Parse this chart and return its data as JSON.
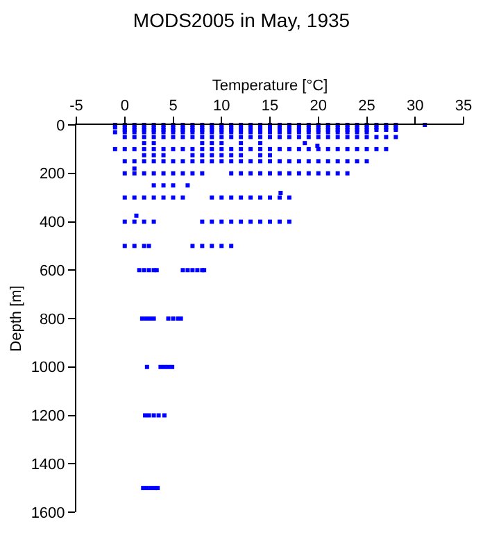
{
  "chart_data": {
    "type": "scatter",
    "title": "MODS2005 in May, 1935",
    "xlabel": "Temperature [°C]",
    "ylabel": "Depth [m]",
    "xlim": [
      -5,
      35
    ],
    "xticks": [
      -5,
      0,
      5,
      10,
      15,
      20,
      25,
      30,
      35
    ],
    "ylim": [
      1600,
      0
    ],
    "yticks": [
      0,
      200,
      400,
      600,
      800,
      1000,
      1200,
      1400,
      1600
    ],
    "marker": "square",
    "series": [
      {
        "color": "#0000ff",
        "x": [
          -1,
          0,
          1,
          2,
          3,
          4,
          5,
          6,
          7,
          8,
          9,
          10,
          11,
          12,
          13,
          14,
          15,
          16,
          17,
          18,
          19,
          20,
          21,
          22,
          23,
          24,
          25,
          26,
          27,
          28,
          31,
          -1,
          0,
          1,
          2,
          3,
          4,
          5,
          6,
          7,
          8,
          9,
          10,
          11,
          12,
          13,
          14,
          15,
          16,
          17,
          18,
          19,
          20,
          21,
          22,
          23,
          24,
          25,
          26,
          27,
          28,
          0,
          1,
          2,
          3,
          4,
          5,
          6,
          7,
          8,
          9,
          10,
          11,
          12,
          13,
          14,
          15,
          16,
          17,
          18,
          19,
          20,
          21,
          22,
          23,
          24,
          25,
          26,
          27,
          28,
          -1,
          0,
          1,
          2,
          3,
          4,
          5,
          6,
          7,
          8,
          9,
          10,
          11,
          12,
          13,
          14,
          15,
          16,
          17,
          18,
          19,
          20,
          21,
          22,
          23,
          24,
          25,
          0,
          1,
          2,
          3,
          4,
          5,
          6,
          7,
          8,
          9,
          10,
          11,
          12,
          13,
          14,
          15,
          16,
          17,
          18,
          19,
          20,
          21,
          22,
          23,
          24,
          25,
          26,
          27,
          28,
          2,
          3,
          8,
          9,
          10,
          12,
          14,
          18.6,
          19.9,
          -1,
          0,
          1,
          2,
          3,
          4,
          5,
          6,
          7,
          8,
          9,
          10,
          11,
          12,
          13,
          14,
          15,
          16,
          17,
          18,
          19,
          20,
          21,
          22,
          23,
          24,
          25,
          26,
          27,
          2,
          3,
          4,
          7,
          8,
          9,
          10,
          11,
          12,
          14,
          15,
          0,
          1,
          2,
          3,
          4,
          5,
          6,
          7,
          8,
          9,
          10,
          11,
          12,
          13,
          14,
          15,
          16,
          17,
          18,
          19,
          20,
          21,
          22,
          23,
          24,
          25,
          1,
          0,
          1,
          2,
          3,
          4,
          5,
          6,
          7,
          8,
          11,
          12,
          13,
          14,
          15,
          16,
          17,
          18,
          19,
          20,
          21,
          22,
          23,
          3,
          4,
          5,
          6.5,
          16.1,
          0,
          1,
          2,
          3,
          4,
          5,
          6,
          9,
          10,
          11,
          12,
          13,
          14,
          15,
          16,
          17,
          1.2,
          0,
          1,
          2,
          3,
          8,
          9,
          10,
          11,
          12,
          13,
          14,
          15,
          16,
          17,
          0,
          1,
          2,
          2.5,
          7,
          8,
          9,
          10,
          11,
          1.5,
          2,
          2.5,
          3,
          3.3,
          6,
          6.5,
          7,
          7.5,
          8,
          8.2,
          1.8,
          2.2,
          2.6,
          3,
          4.5,
          5,
          5.5,
          5.8,
          2.3,
          3.7,
          4.1,
          4.5,
          4.9,
          2.1,
          2.5,
          3,
          3.5,
          4.1,
          1.9,
          2.3,
          2.7,
          3.1,
          3.4
        ],
        "values": [
          0,
          0,
          0,
          0,
          0,
          0,
          0,
          0,
          0,
          0,
          0,
          0,
          0,
          0,
          0,
          0,
          0,
          0,
          0,
          0,
          0,
          0,
          0,
          0,
          0,
          0,
          0,
          0,
          0,
          0,
          0,
          10,
          10,
          10,
          10,
          10,
          10,
          10,
          10,
          10,
          10,
          10,
          10,
          10,
          10,
          10,
          10,
          10,
          10,
          10,
          10,
          10,
          10,
          10,
          10,
          10,
          10,
          10,
          10,
          10,
          10,
          20,
          20,
          20,
          20,
          20,
          20,
          20,
          20,
          20,
          20,
          20,
          20,
          20,
          20,
          20,
          20,
          20,
          20,
          20,
          20,
          20,
          20,
          20,
          20,
          20,
          20,
          20,
          20,
          20,
          30,
          30,
          30,
          30,
          30,
          30,
          30,
          30,
          30,
          30,
          30,
          30,
          30,
          30,
          30,
          30,
          30,
          30,
          30,
          30,
          30,
          30,
          30,
          30,
          30,
          30,
          30,
          50,
          50,
          50,
          50,
          50,
          50,
          50,
          50,
          50,
          50,
          50,
          50,
          50,
          50,
          50,
          50,
          50,
          50,
          50,
          50,
          50,
          50,
          50,
          50,
          50,
          50,
          50,
          50,
          50,
          75,
          75,
          75,
          75,
          75,
          75,
          75,
          75,
          86,
          100,
          100,
          100,
          100,
          100,
          100,
          100,
          100,
          100,
          100,
          100,
          100,
          100,
          100,
          100,
          100,
          100,
          100,
          100,
          100,
          100,
          100,
          100,
          100,
          100,
          100,
          100,
          100,
          100,
          125,
          125,
          125,
          125,
          125,
          125,
          125,
          125,
          125,
          125,
          125,
          150,
          150,
          150,
          150,
          150,
          150,
          150,
          150,
          150,
          150,
          150,
          150,
          150,
          150,
          150,
          150,
          150,
          150,
          150,
          150,
          150,
          150,
          150,
          150,
          150,
          150,
          180,
          200,
          200,
          200,
          200,
          200,
          200,
          200,
          200,
          200,
          200,
          200,
          200,
          200,
          200,
          200,
          200,
          200,
          200,
          200,
          200,
          200,
          200,
          250,
          250,
          250,
          250,
          281,
          300,
          300,
          300,
          300,
          300,
          300,
          300,
          300,
          300,
          300,
          300,
          300,
          300,
          300,
          300,
          300,
          375,
          400,
          400,
          400,
          400,
          400,
          400,
          400,
          400,
          400,
          400,
          400,
          400,
          400,
          400,
          500,
          500,
          500,
          500,
          500,
          500,
          500,
          500,
          500,
          600,
          600,
          600,
          600,
          600,
          600,
          600,
          600,
          600,
          600,
          600,
          800,
          800,
          800,
          800,
          800,
          800,
          800,
          800,
          1000,
          1000,
          1000,
          1000,
          1000,
          1200,
          1200,
          1200,
          1200,
          1200,
          1500,
          1500,
          1500,
          1500,
          1500
        ]
      }
    ]
  }
}
